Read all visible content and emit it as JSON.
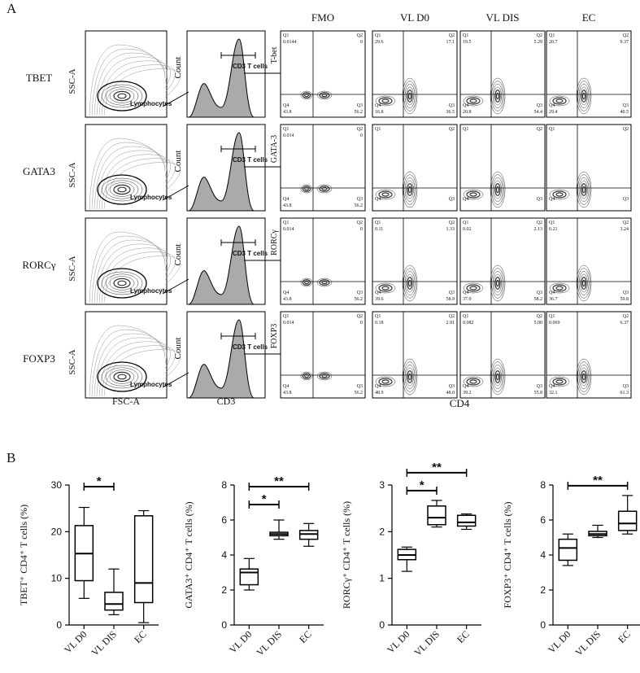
{
  "panel_a": {
    "label": "A",
    "columns": [
      "FMO",
      "VL D0",
      "VL DIS",
      "EC"
    ],
    "x_labels": {
      "scatter": "FSC-A",
      "histogram": "CD3",
      "quadrant": "CD4"
    },
    "rows": [
      {
        "marker": "TBET",
        "ssc": "SSC-A",
        "gate": "Lymphocytes",
        "count": "Count",
        "cd3_gate": "CD3 T cells",
        "y_label": "T-bet",
        "plots": [
          [
            [
              "Q1",
              "0.0144"
            ],
            [
              "Q2",
              "0"
            ],
            [
              "Q4",
              "43.8"
            ],
            [
              "Q3",
              "56.2"
            ]
          ],
          [
            [
              "Q1",
              "29.6"
            ],
            [
              "Q2",
              "17.1"
            ],
            [
              "Q4",
              "16.8"
            ],
            [
              "Q3",
              "36.5"
            ]
          ],
          [
            [
              "Q1",
              "19.5"
            ],
            [
              "Q2",
              "5.29"
            ],
            [
              "Q4",
              "20.8"
            ],
            [
              "Q3",
              "54.4"
            ]
          ],
          [
            [
              "Q1",
              "20.7"
            ],
            [
              "Q2",
              "9.37"
            ],
            [
              "Q4",
              "29.4"
            ],
            [
              "Q3",
              "40.5"
            ]
          ]
        ]
      },
      {
        "marker": "GATA3",
        "ssc": "SSC-A",
        "gate": "Lymphocytes",
        "count": "Count",
        "cd3_gate": "CD3 T cells",
        "y_label": "GATA-3",
        "plots": [
          [
            [
              "Q1",
              "0.014"
            ],
            [
              "Q2",
              "0"
            ],
            [
              "Q4",
              "43.8"
            ],
            [
              "Q3",
              "56.2"
            ]
          ],
          [
            [
              "Q1"
            ],
            [
              "Q2"
            ],
            [
              "Q4"
            ],
            [
              "Q3"
            ]
          ],
          [
            [
              "Q1"
            ],
            [
              "Q2"
            ],
            [
              "Q4"
            ],
            [
              "Q3"
            ]
          ],
          [
            [
              "Q1"
            ],
            [
              "Q2"
            ],
            [
              "Q4"
            ],
            [
              "Q3"
            ]
          ]
        ]
      },
      {
        "marker": "RORCγ",
        "ssc": "SSC-A",
        "gate": "Lymphocytes",
        "count": "Count",
        "cd3_gate": "CD3 T cells",
        "y_label": "RORCγ",
        "plots": [
          [
            [
              "Q1",
              "0.014"
            ],
            [
              "Q2",
              "0"
            ],
            [
              "Q4",
              "43.8"
            ],
            [
              "Q3",
              "56.2"
            ]
          ],
          [
            [
              "Q1",
              "0.11"
            ],
            [
              "Q2",
              "1.33"
            ],
            [
              "Q4",
              "39.6"
            ],
            [
              "Q3",
              "58.9"
            ]
          ],
          [
            [
              "Q1",
              "0.02"
            ],
            [
              "Q2",
              "2.13"
            ],
            [
              "Q4",
              "37.0"
            ],
            [
              "Q3",
              "58.2"
            ]
          ],
          [
            [
              "Q1",
              "0.21"
            ],
            [
              "Q2",
              "3.24"
            ],
            [
              "Q4",
              "36.7"
            ],
            [
              "Q3",
              "59.8"
            ]
          ]
        ]
      },
      {
        "marker": "FOXP3",
        "ssc": "SSC-A",
        "gate": "Lymphocytes",
        "count": "Count",
        "cd3_gate": "CD3 T cells",
        "y_label": "FOXP3",
        "plots": [
          [
            [
              "Q1",
              "0.014"
            ],
            [
              "Q2",
              "0"
            ],
            [
              "Q4",
              "43.8"
            ],
            [
              "Q3",
              "56.2"
            ]
          ],
          [
            [
              "Q1",
              "0.18"
            ],
            [
              "Q2",
              "2.91"
            ],
            [
              "Q4",
              "48.9"
            ],
            [
              "Q3",
              "48.0"
            ]
          ],
          [
            [
              "Q1",
              "0.082"
            ],
            [
              "Q2",
              "5.00"
            ],
            [
              "Q4",
              "39.2"
            ],
            [
              "Q3",
              "55.8"
            ]
          ],
          [
            [
              "Q1",
              "0.069"
            ],
            [
              "Q2",
              "6.37"
            ],
            [
              "Q4",
              "32.1"
            ],
            [
              "Q3",
              "61.3"
            ]
          ]
        ]
      }
    ]
  },
  "panel_b": {
    "label": "B"
  },
  "chart_data": [
    {
      "type": "box",
      "y_label": "TBET⁺ CD4⁺ T cells (%)",
      "categories": [
        "VL D0",
        "VL DIS",
        "EC"
      ],
      "ylim": [
        0,
        30
      ],
      "yticks": [
        0,
        10,
        20,
        30
      ],
      "boxes": [
        [
          5.7,
          9.5,
          15.3,
          21.3,
          25.2
        ],
        [
          2.2,
          3.2,
          4.5,
          7,
          12
        ],
        [
          0.5,
          4.8,
          9,
          23.4,
          24.5
        ]
      ],
      "significance": [
        {
          "pair": [
            0,
            1
          ],
          "label": "*"
        }
      ]
    },
    {
      "type": "box",
      "y_label": "GATA3⁺ CD4⁺ T cells (%)",
      "categories": [
        "VL D0",
        "VL DIS",
        "EC"
      ],
      "ylim": [
        0,
        8
      ],
      "yticks": [
        0,
        2,
        4,
        6,
        8
      ],
      "boxes": [
        [
          2.0,
          2.3,
          3.0,
          3.2,
          3.8
        ],
        [
          4.9,
          5.1,
          5.2,
          5.3,
          6.0
        ],
        [
          4.5,
          4.9,
          5.2,
          5.4,
          5.8
        ]
      ],
      "significance": [
        {
          "pair": [
            0,
            1
          ],
          "label": "*"
        },
        {
          "pair": [
            0,
            2
          ],
          "label": "**"
        }
      ]
    },
    {
      "type": "box",
      "y_label": "RORCγ⁺ CD4⁺ T cells (%)",
      "categories": [
        "VL D0",
        "VL DIS",
        "EC"
      ],
      "ylim": [
        0,
        3
      ],
      "yticks": [
        0,
        1,
        2,
        3
      ],
      "boxes": [
        [
          1.15,
          1.4,
          1.5,
          1.62,
          1.67
        ],
        [
          2.1,
          2.15,
          2.3,
          2.55,
          2.67
        ],
        [
          2.05,
          2.12,
          2.2,
          2.35,
          2.38
        ]
      ],
      "significance": [
        {
          "pair": [
            0,
            1
          ],
          "label": "*"
        },
        {
          "pair": [
            0,
            2
          ],
          "label": "**"
        }
      ]
    },
    {
      "type": "box",
      "y_label": "FOXP3⁺ CD4⁺ T cells (%)",
      "categories": [
        "VL D0",
        "VL DIS",
        "EC"
      ],
      "ylim": [
        0,
        8
      ],
      "yticks": [
        0,
        2,
        4,
        6,
        8
      ],
      "boxes": [
        [
          3.4,
          3.7,
          4.4,
          4.9,
          5.2
        ],
        [
          5.0,
          5.1,
          5.2,
          5.35,
          5.7
        ],
        [
          5.2,
          5.4,
          5.8,
          6.5,
          7.4
        ]
      ],
      "significance": [
        {
          "pair": [
            0,
            2
          ],
          "label": "**"
        }
      ]
    }
  ]
}
